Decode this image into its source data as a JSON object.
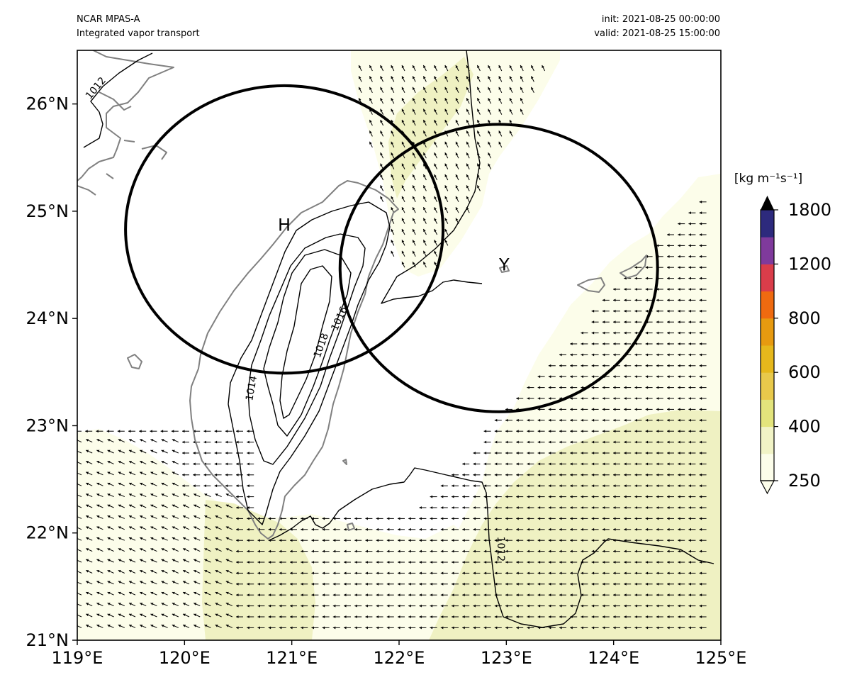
{
  "header": {
    "model": "NCAR MPAS-A",
    "field": "Integrated vapor transport",
    "init": "init: 2021-08-25 00:00:00",
    "valid": "valid: 2021-08-25 15:00:00"
  },
  "map": {
    "lon_range": [
      119,
      125
    ],
    "lat_range": [
      21,
      26.5
    ],
    "lon_ticks": [
      "119°E",
      "120°E",
      "121°E",
      "122°E",
      "123°E",
      "124°E",
      "125°E"
    ],
    "lat_ticks": [
      "21°N",
      "22°N",
      "23°N",
      "24°N",
      "25°N",
      "26°N"
    ],
    "colors": {
      "frame": "#000000",
      "coastline": "#808080",
      "isobar": "#000000",
      "ivt_250": "#fcfdea",
      "ivt_300": "#eff1c2",
      "circle": "#000000"
    }
  },
  "centers": [
    {
      "label": "H",
      "lon": 120.93,
      "lat": 24.87
    },
    {
      "label": "Y",
      "lon": 122.98,
      "lat": 24.5
    }
  ],
  "circles": [
    {
      "center_lon": 120.93,
      "center_lat": 24.83,
      "radius_lon": 1.48,
      "radius_lat": 1.34
    },
    {
      "center_lon": 122.93,
      "center_lat": 24.47,
      "radius_lon": 1.48,
      "radius_lat": 1.34
    }
  ],
  "isobar_labels": [
    {
      "text": "1012",
      "lon": 119.17,
      "lat": 26.15,
      "angle": -50
    },
    {
      "text": "1014",
      "lon": 120.62,
      "lat": 23.35,
      "angle": -80
    },
    {
      "text": "1016",
      "lon": 121.44,
      "lat": 24.0,
      "angle": -65
    },
    {
      "text": "1018",
      "lon": 121.27,
      "lat": 23.75,
      "angle": -70
    },
    {
      "text": "1012",
      "lon": 122.95,
      "lat": 21.85,
      "angle": 90
    }
  ],
  "colorbar": {
    "unit": "[kg m⁻¹s⁻¹]",
    "levels": [
      250,
      300,
      400,
      500,
      600,
      700,
      800,
      1000,
      1200,
      1500,
      1800
    ],
    "tick_labels": [
      "250",
      "400",
      "600",
      "800",
      "1200",
      "1800"
    ],
    "colors": [
      "#fcfdea",
      "#f1f3c6",
      "#e3e47c",
      "#e8c94b",
      "#e6b81c",
      "#e79a10",
      "#ef6a10",
      "#da3d4a",
      "#7f3a9c",
      "#2d2a7d"
    ],
    "extend_max_color": "#000000"
  }
}
